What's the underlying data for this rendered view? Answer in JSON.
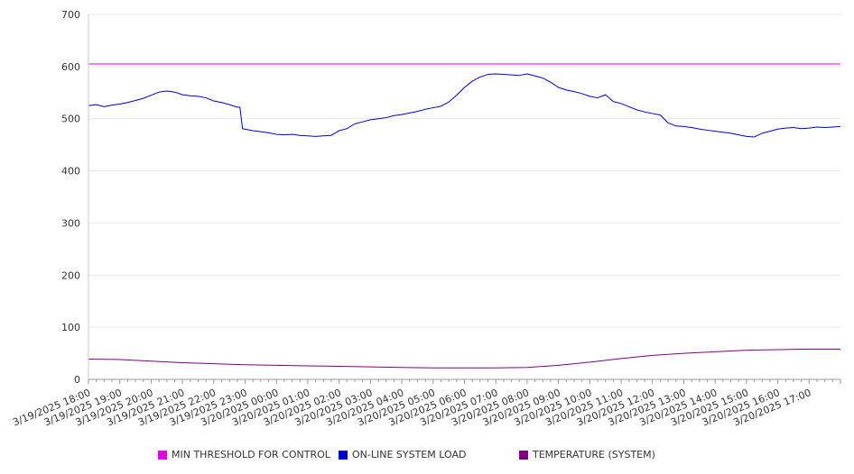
{
  "chart_data": {
    "type": "line",
    "xlabel": "",
    "ylabel": "",
    "ylim": [
      0,
      700
    ],
    "yticks": [
      0,
      100,
      200,
      300,
      400,
      500,
      600,
      700
    ],
    "grid": true,
    "legend_position": "bottom",
    "x_tick_labels": [
      "3/19/2025 18:00",
      "3/19/2025 19:00",
      "3/19/2025 20:00",
      "3/19/2025 21:00",
      "3/19/2025 22:00",
      "3/19/2025 23:00",
      "3/20/2025 00:00",
      "3/20/2025 01:00",
      "3/20/2025 02:00",
      "3/20/2025 03:00",
      "3/20/2025 04:00",
      "3/20/2025 05:00",
      "3/20/2025 06:00",
      "3/20/2025 07:00",
      "3/20/2025 08:00",
      "3/20/2025 09:00",
      "3/20/2025 10:00",
      "3/20/2025 11:00",
      "3/20/2025 12:00",
      "3/20/2025 13:00",
      "3/20/2025 14:00",
      "3/20/2025 15:00",
      "3/20/2025 16:00",
      "3/20/2025 17:00"
    ],
    "x_range": [
      "3/19/2025 18:00",
      "3/20/2025 18:00"
    ],
    "series": [
      {
        "name": "MIN THRESHOLD FOR CONTROL",
        "color": "#e000e0",
        "points": [
          [
            "3/19/2025 18:00",
            605
          ],
          [
            "3/20/2025 18:00",
            605
          ]
        ]
      },
      {
        "name": "ON-LINE SYSTEM LOAD",
        "color": "#0000cc",
        "points": [
          [
            "3/19/2025 18:00",
            525
          ],
          [
            "3/19/2025 18:15",
            527
          ],
          [
            "3/19/2025 18:30",
            523
          ],
          [
            "3/19/2025 18:45",
            526
          ],
          [
            "3/19/2025 19:00",
            528
          ],
          [
            "3/19/2025 19:15",
            531
          ],
          [
            "3/19/2025 19:30",
            535
          ],
          [
            "3/19/2025 19:45",
            539
          ],
          [
            "3/19/2025 20:00",
            545
          ],
          [
            "3/19/2025 20:15",
            551
          ],
          [
            "3/19/2025 20:30",
            553
          ],
          [
            "3/19/2025 20:45",
            551
          ],
          [
            "3/19/2025 21:00",
            546
          ],
          [
            "3/19/2025 21:15",
            544
          ],
          [
            "3/19/2025 21:30",
            543
          ],
          [
            "3/19/2025 21:45",
            540
          ],
          [
            "3/19/2025 22:00",
            534
          ],
          [
            "3/19/2025 22:15",
            531
          ],
          [
            "3/19/2025 22:30",
            527
          ],
          [
            "3/19/2025 22:45",
            522
          ],
          [
            "3/19/2025 22:50",
            522
          ],
          [
            "3/19/2025 22:55",
            481
          ],
          [
            "3/19/2025 23:15",
            477
          ],
          [
            "3/19/2025 23:30",
            475
          ],
          [
            "3/19/2025 23:45",
            473
          ],
          [
            "3/20/2025 00:00",
            470
          ],
          [
            "3/20/2025 00:15",
            469
          ],
          [
            "3/20/2025 00:30",
            470
          ],
          [
            "3/20/2025 00:45",
            468
          ],
          [
            "3/20/2025 01:00",
            467
          ],
          [
            "3/20/2025 01:15",
            466
          ],
          [
            "3/20/2025 01:30",
            467
          ],
          [
            "3/20/2025 01:45",
            468
          ],
          [
            "3/20/2025 02:00",
            477
          ],
          [
            "3/20/2025 02:15",
            481
          ],
          [
            "3/20/2025 02:30",
            490
          ],
          [
            "3/20/2025 02:45",
            494
          ],
          [
            "3/20/2025 03:00",
            498
          ],
          [
            "3/20/2025 03:15",
            500
          ],
          [
            "3/20/2025 03:30",
            502
          ],
          [
            "3/20/2025 03:45",
            506
          ],
          [
            "3/20/2025 04:00",
            508
          ],
          [
            "3/20/2025 04:15",
            511
          ],
          [
            "3/20/2025 04:30",
            514
          ],
          [
            "3/20/2025 04:45",
            518
          ],
          [
            "3/20/2025 05:00",
            521
          ],
          [
            "3/20/2025 05:15",
            524
          ],
          [
            "3/20/2025 05:30",
            532
          ],
          [
            "3/20/2025 05:45",
            545
          ],
          [
            "3/20/2025 06:00",
            560
          ],
          [
            "3/20/2025 06:15",
            572
          ],
          [
            "3/20/2025 06:30",
            580
          ],
          [
            "3/20/2025 06:45",
            585
          ],
          [
            "3/20/2025 07:00",
            586
          ],
          [
            "3/20/2025 07:15",
            585
          ],
          [
            "3/20/2025 07:30",
            584
          ],
          [
            "3/20/2025 07:45",
            583
          ],
          [
            "3/20/2025 08:00",
            586
          ],
          [
            "3/20/2025 08:15",
            582
          ],
          [
            "3/20/2025 08:30",
            578
          ],
          [
            "3/20/2025 08:45",
            570
          ],
          [
            "3/20/2025 09:00",
            560
          ],
          [
            "3/20/2025 09:15",
            555
          ],
          [
            "3/20/2025 09:30",
            552
          ],
          [
            "3/20/2025 09:45",
            548
          ],
          [
            "3/20/2025 10:00",
            543
          ],
          [
            "3/20/2025 10:15",
            540
          ],
          [
            "3/20/2025 10:30",
            546
          ],
          [
            "3/20/2025 10:45",
            533
          ],
          [
            "3/20/2025 11:00",
            529
          ],
          [
            "3/20/2025 11:15",
            523
          ],
          [
            "3/20/2025 11:30",
            517
          ],
          [
            "3/20/2025 11:45",
            513
          ],
          [
            "3/20/2025 12:00",
            510
          ],
          [
            "3/20/2025 12:15",
            507
          ],
          [
            "3/20/2025 12:30",
            492
          ],
          [
            "3/20/2025 12:45",
            486
          ],
          [
            "3/20/2025 13:00",
            485
          ],
          [
            "3/20/2025 13:15",
            483
          ],
          [
            "3/20/2025 13:30",
            480
          ],
          [
            "3/20/2025 13:45",
            478
          ],
          [
            "3/20/2025 14:00",
            476
          ],
          [
            "3/20/2025 14:15",
            474
          ],
          [
            "3/20/2025 14:30",
            472
          ],
          [
            "3/20/2025 14:45",
            469
          ],
          [
            "3/20/2025 15:00",
            466
          ],
          [
            "3/20/2025 15:15",
            465
          ],
          [
            "3/20/2025 15:30",
            472
          ],
          [
            "3/20/2025 15:45",
            476
          ],
          [
            "3/20/2025 16:00",
            480
          ],
          [
            "3/20/2025 16:15",
            482
          ],
          [
            "3/20/2025 16:30",
            483
          ],
          [
            "3/20/2025 16:45",
            481
          ],
          [
            "3/20/2025 17:00",
            482
          ],
          [
            "3/20/2025 17:15",
            484
          ],
          [
            "3/20/2025 17:30",
            483
          ],
          [
            "3/20/2025 17:45",
            484
          ],
          [
            "3/20/2025 18:00",
            485
          ]
        ]
      },
      {
        "name": "TEMPERATURE (SYSTEM)",
        "color": "#800080",
        "points": [
          [
            "3/19/2025 18:00",
            39
          ],
          [
            "3/19/2025 19:00",
            38
          ],
          [
            "3/19/2025 20:00",
            35
          ],
          [
            "3/19/2025 21:00",
            32
          ],
          [
            "3/19/2025 22:00",
            30
          ],
          [
            "3/19/2025 23:00",
            28
          ],
          [
            "3/20/2025 00:00",
            27
          ],
          [
            "3/20/2025 01:00",
            26
          ],
          [
            "3/20/2025 02:00",
            25
          ],
          [
            "3/20/2025 03:00",
            24
          ],
          [
            "3/20/2025 04:00",
            23
          ],
          [
            "3/20/2025 05:00",
            22
          ],
          [
            "3/20/2025 06:00",
            22
          ],
          [
            "3/20/2025 07:00",
            22
          ],
          [
            "3/20/2025 08:00",
            23
          ],
          [
            "3/20/2025 09:00",
            27
          ],
          [
            "3/20/2025 10:00",
            33
          ],
          [
            "3/20/2025 11:00",
            40
          ],
          [
            "3/20/2025 12:00",
            46
          ],
          [
            "3/20/2025 13:00",
            50
          ],
          [
            "3/20/2025 14:00",
            53
          ],
          [
            "3/20/2025 15:00",
            56
          ],
          [
            "3/20/2025 16:00",
            57
          ],
          [
            "3/20/2025 17:00",
            58
          ],
          [
            "3/20/2025 18:00",
            58
          ]
        ]
      }
    ]
  }
}
